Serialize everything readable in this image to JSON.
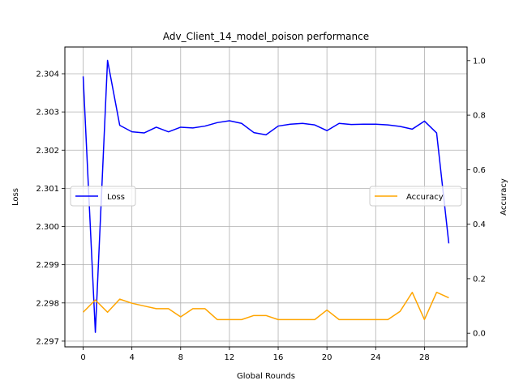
{
  "chart_data": {
    "type": "line",
    "title": "Adv_Client_14_model_poison performance",
    "xlabel": "Global Rounds",
    "ylabel_left": "Loss",
    "ylabel_right": "Accuracy",
    "x": [
      0,
      1,
      2,
      3,
      4,
      5,
      6,
      7,
      8,
      9,
      10,
      11,
      12,
      13,
      14,
      15,
      16,
      17,
      18,
      19,
      20,
      21,
      22,
      23,
      24,
      25,
      26,
      27,
      28,
      29,
      30
    ],
    "xlim": [
      -1.5,
      31.5
    ],
    "xticks": [
      0,
      4,
      8,
      12,
      16,
      20,
      24,
      28
    ],
    "ylim_left": [
      2.29685,
      2.3047
    ],
    "yticks_left": [
      2.297,
      2.298,
      2.299,
      2.3,
      2.301,
      2.302,
      2.303,
      2.304
    ],
    "ytick_labels_left": [
      "2.297",
      "2.298",
      "2.299",
      "2.300",
      "2.301",
      "2.302",
      "2.303",
      "2.304"
    ],
    "ylim_right": [
      -0.05,
      1.05
    ],
    "yticks_right": [
      0.0,
      0.2,
      0.4,
      0.6,
      0.8,
      1.0
    ],
    "ytick_labels_right": [
      "0.0",
      "0.2",
      "0.4",
      "0.6",
      "0.8",
      "1.0"
    ],
    "grid": true,
    "series": [
      {
        "name": "Loss",
        "axis": "left",
        "color": "#0000ff",
        "legend_position": "center-left",
        "values": [
          2.30393,
          2.29723,
          2.30435,
          2.30265,
          2.30248,
          2.30245,
          2.3026,
          2.30248,
          2.3026,
          2.30258,
          2.30263,
          2.30272,
          2.30277,
          2.3027,
          2.30246,
          2.3024,
          2.30263,
          2.30268,
          2.3027,
          2.30266,
          2.30251,
          2.3027,
          2.30267,
          2.30268,
          2.30268,
          2.30266,
          2.30262,
          2.30255,
          2.30276,
          2.30245,
          2.29956
        ]
      },
      {
        "name": "Accuracy",
        "axis": "right",
        "color": "#ffa500",
        "legend_position": "center-right",
        "values": [
          0.077,
          0.122,
          0.077,
          0.125,
          0.11,
          0.1,
          0.09,
          0.09,
          0.06,
          0.09,
          0.09,
          0.05,
          0.05,
          0.05,
          0.065,
          0.065,
          0.05,
          0.05,
          0.05,
          0.05,
          0.085,
          0.05,
          0.05,
          0.05,
          0.05,
          0.05,
          0.08,
          0.15,
          0.05,
          0.15,
          0.13
        ]
      }
    ]
  }
}
